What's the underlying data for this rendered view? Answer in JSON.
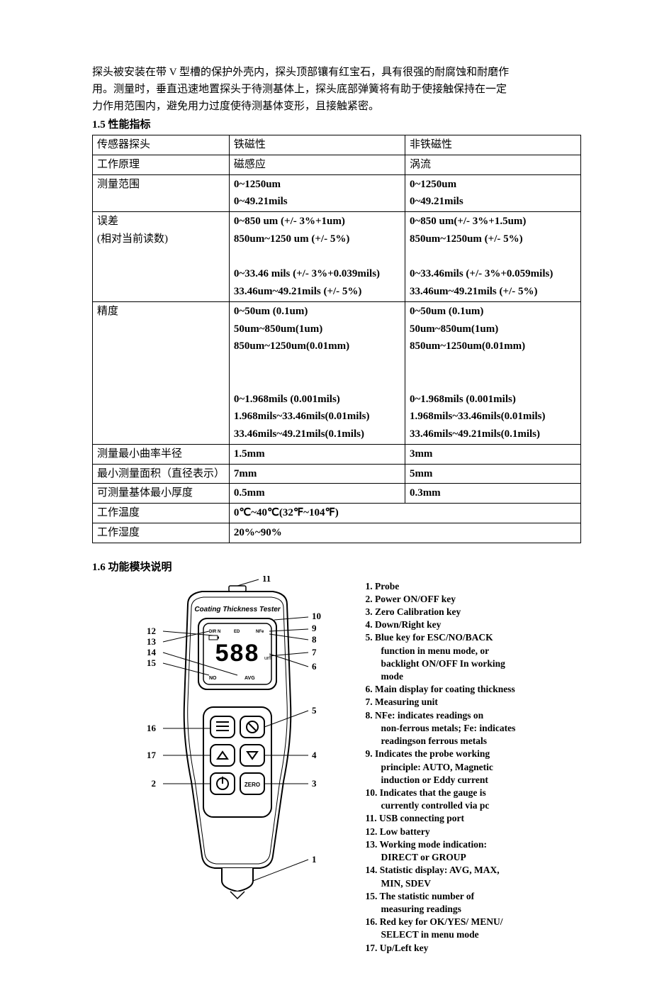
{
  "intro": {
    "line1": "探头被安装在带 V 型槽的保护外壳内，探头顶部镶有红宝石，具有很强的耐腐蚀和耐磨作",
    "line2": "用。测量时，垂直迅速地置探头于待测基体上，探头底部弹簧将有助于使接触保持在一定",
    "line3": "力作用范围内，避免用力过度使待测基体变形，且接触紧密。"
  },
  "section15_num": "1.5",
  "section15_title": " 性能指标",
  "table": {
    "r1c1": "传感器探头",
    "r1c2": "铁磁性",
    "r1c3": " 非铁磁性",
    "r2c1": "工作原理",
    "r2c2": "磁感应",
    "r2c3": "涡流",
    "r3c1": "测量范围",
    "r3c2a": "0~1250um",
    "r3c2b": "0~49.21mils",
    "r3c3a": "0~1250um",
    "r3c3b": "0~49.21mils",
    "r4c1a": "误差",
    "r4c1b": "(相对当前读数)",
    "r4c2a": "0~850 um (+/- 3%+1um)",
    "r4c2b": "850um~1250 um (+/- 5%)",
    "r4c2c": "0~33.46 mils (+/- 3%+0.039mils)",
    "r4c2d": "33.46um~49.21mils (+/- 5%)",
    "r4c3a": "0~850 um(+/- 3%+1.5um)",
    "r4c3b": "850um~1250um (+/- 5%)",
    "r4c3c": "0~33.46mils (+/- 3%+0.059mils)",
    "r4c3d": "33.46um~49.21mils (+/- 5%)",
    "r5c1": " 精度",
    "r5c2a": " 0~50um (0.1um)",
    "r5c2b": " 50um~850um(1um)",
    "r5c2c": " 850um~1250um(0.01mm)",
    "r5c2d": "0~1.968mils    (0.001mils)",
    "r5c2e": "1.968mils~33.46mils(0.01mils)",
    "r5c2f": "33.46mils~49.21mils(0.1mils)",
    "r5c3a": " 0~50um (0.1um)",
    "r5c3b": " 50um~850um(1um)",
    "r5c3c": " 850um~1250um(0.01mm)",
    "r5c3d": "0~1.968mils    (0.001mils)",
    "r5c3e": "1.968mils~33.46mils(0.01mils)",
    "r5c3f": "33.46mils~49.21mils(0.1mils)",
    "r6c1": "测量最小曲率半径",
    "r6c2": "1.5mm",
    "r6c3": "3mm",
    "r7c1": "最小测量面积（直径表示）",
    "r7c2": "7mm",
    "r7c3": "5mm",
    "r8c1": "可测量基体最小厚度",
    "r8c2": "0.5mm",
    "r8c3": "0.3mm",
    "r9c1": "工作温度",
    "r9c2": "0℃~40℃(32℉~104℉)",
    "r10c1": "工作湿度",
    "r10c2": "20%~90%"
  },
  "section16_num": "1.6",
  "section16_title": " 功能模块说明",
  "device_label": "Coating Thickness Tester",
  "lcd": {
    "dirn": "DIR N",
    "ed": "ED",
    "nfe": "NFe",
    "no": "NO",
    "avg": "AVG",
    "um": "um",
    "digits": "588"
  },
  "callouts": {
    "n1": "1",
    "n2": "2",
    "n3": "3",
    "n4": "4",
    "n5": "5",
    "n6": "6",
    "n7": "7",
    "n8": "8",
    "n9": "9",
    "n10": "10",
    "n11": "11",
    "n12": "12",
    "n13": "13",
    "n14": "14",
    "n15": "15",
    "n16": "16",
    "n17": "17"
  },
  "legend": [
    {
      "t": "1. Probe"
    },
    {
      "t": "2. Power ON/OFF key"
    },
    {
      "t": "3. Zero Calibration key"
    },
    {
      "t": "4. Down/Right key"
    },
    {
      "t": "5. Blue key for ESC/NO/BACK"
    },
    {
      "t": "function in menu mode, or",
      "sub": true
    },
    {
      "t": "backlight ON/OFF In working",
      "sub": true
    },
    {
      "t": "mode",
      "sub": true
    },
    {
      "t": "6. Main display for coating thickness"
    },
    {
      "t": "7.  Measuring unit"
    },
    {
      "t": "8.  NFe: indicates readings on"
    },
    {
      "t": "non-ferrous metals; Fe: indicates",
      "sub": true
    },
    {
      "t": "readingson ferrous metals",
      "sub": true
    },
    {
      "t": "9.  Indicates the probe working"
    },
    {
      "t": "principle: AUTO, Magnetic",
      "sub": true
    },
    {
      "t": "induction or Eddy current",
      "sub": true
    },
    {
      "t": "10. Indicates that the gauge is"
    },
    {
      "t": "currently controlled via pc",
      "sub": true
    },
    {
      "t": "11. USB connecting port"
    },
    {
      "t": "12. Low battery"
    },
    {
      "t": "13. Working mode indication:"
    },
    {
      "t": " DIRECT or GROUP",
      "sub": true
    },
    {
      "t": "14. Statistic display: AVG, MAX,"
    },
    {
      "t": "MIN, SDEV",
      "sub": true
    },
    {
      "t": "15. The statistic number of"
    },
    {
      "t": " measuring readings",
      "sub": true
    },
    {
      "t": "16. Red key for OK/YES/ MENU/"
    },
    {
      "t": "SELECT in menu mode",
      "sub": true
    },
    {
      "t": "17. Up/Left key"
    }
  ]
}
